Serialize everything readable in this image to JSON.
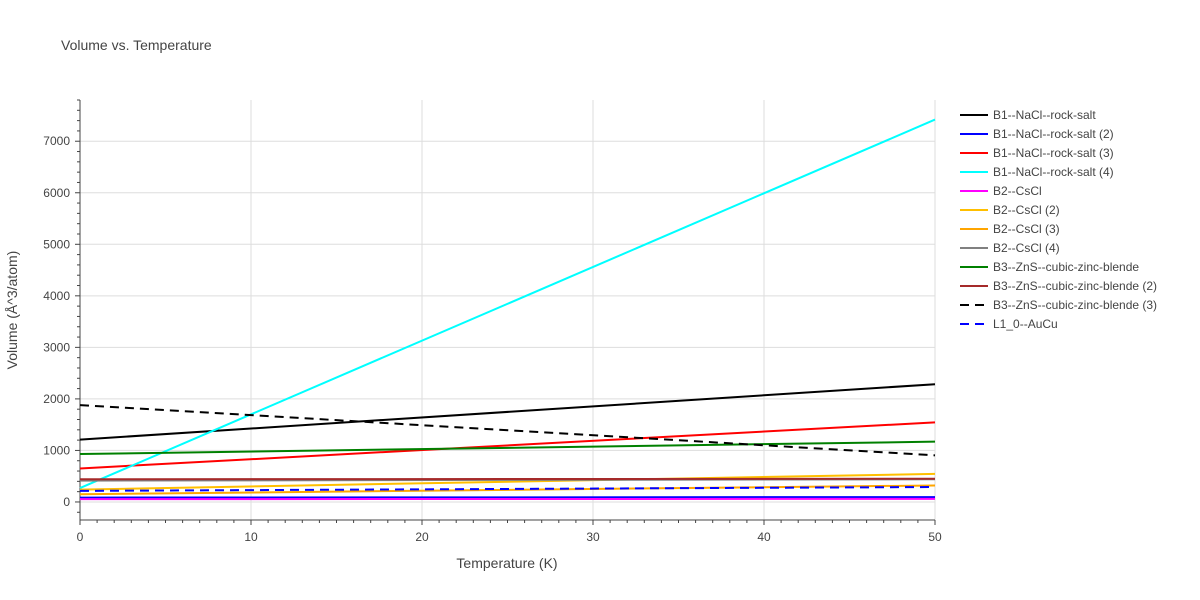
{
  "chart_data": {
    "type": "line",
    "title": "Volume vs. Temperature",
    "xlabel": "Temperature (K)",
    "ylabel": "Volume (Å^3/atom)",
    "xlim": [
      0,
      50
    ],
    "ylim": [
      -350,
      7800
    ],
    "xticks": [
      0,
      10,
      20,
      30,
      40,
      50
    ],
    "yticks": [
      0,
      1000,
      2000,
      3000,
      4000,
      5000,
      6000,
      7000
    ],
    "grid": true,
    "legend_position": "right",
    "series": [
      {
        "name": "B1--NaCl--rock-salt",
        "color": "#000000",
        "dash": "solid",
        "x": [
          0,
          50
        ],
        "y": [
          1210,
          2285
        ]
      },
      {
        "name": "B1--NaCl--rock-salt (2)",
        "color": "#0000ff",
        "dash": "solid",
        "x": [
          0,
          50
        ],
        "y": [
          85,
          95
        ]
      },
      {
        "name": "B1--NaCl--rock-salt (3)",
        "color": "#ff0000",
        "dash": "solid",
        "x": [
          0,
          50
        ],
        "y": [
          650,
          1545
        ]
      },
      {
        "name": "B1--NaCl--rock-salt (4)",
        "color": "#00ffff",
        "dash": "solid",
        "x": [
          0,
          50
        ],
        "y": [
          270,
          7420
        ]
      },
      {
        "name": "B2--CsCl",
        "color": "#ff00ff",
        "dash": "solid",
        "x": [
          0,
          50
        ],
        "y": [
          55,
          60
        ]
      },
      {
        "name": "B2--CsCl (2)",
        "color": "#ffbf00",
        "dash": "solid",
        "x": [
          0,
          50
        ],
        "y": [
          240,
          545
        ]
      },
      {
        "name": "B2--CsCl (3)",
        "color": "#ffa500",
        "dash": "solid",
        "x": [
          0,
          50
        ],
        "y": [
          150,
          320
        ]
      },
      {
        "name": "B2--CsCl (4)",
        "color": "#808080",
        "dash": "solid",
        "x": [
          0,
          50
        ],
        "y": [
          415,
          440
        ]
      },
      {
        "name": "B3--ZnS--cubic-zinc-blende",
        "color": "#008000",
        "dash": "solid",
        "x": [
          0,
          50
        ],
        "y": [
          930,
          1170
        ]
      },
      {
        "name": "B3--ZnS--cubic-zinc-blende (2)",
        "color": "#a52a2a",
        "dash": "solid",
        "x": [
          0,
          50
        ],
        "y": [
          440,
          450
        ]
      },
      {
        "name": "B3--ZnS--cubic-zinc-blende (3)",
        "color": "#000000",
        "dash": "dash",
        "x": [
          0,
          50
        ],
        "y": [
          1880,
          905
        ]
      },
      {
        "name": "L1_0--AuCu",
        "color": "#0000ff",
        "dash": "dash",
        "x": [
          0,
          50
        ],
        "y": [
          215,
          290
        ]
      }
    ]
  }
}
